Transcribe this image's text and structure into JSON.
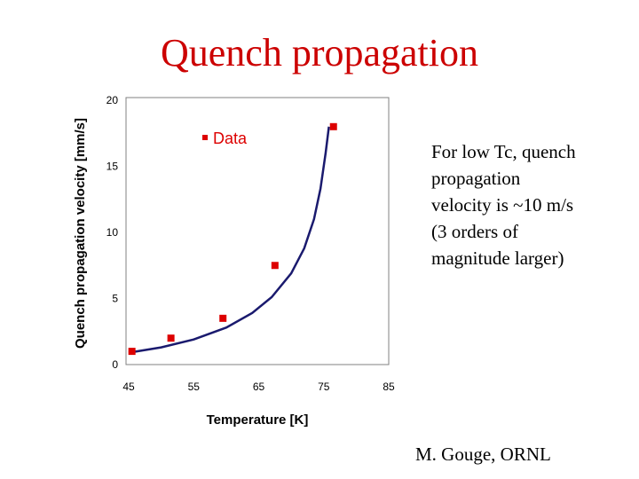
{
  "slide": {
    "title": "Quench propagation",
    "note": "For low Tc, quench propagation velocity is ~10 m/s (3 orders of magnitude larger)",
    "credit": "M. Gouge, ORNL"
  },
  "colors": {
    "title": "#cc0000",
    "marker": "#dd0000",
    "curve": "#1a1a6e",
    "legend_text": "#dd0000"
  },
  "chart_data": {
    "type": "scatter",
    "title": "",
    "xlabel": "Temperature [K]",
    "ylabel": "Quench propagation velocity [mm/s]",
    "xlim": [
      45,
      85
    ],
    "ylim": [
      0,
      20
    ],
    "xticks": [
      "45",
      "55",
      "65",
      "75",
      "85"
    ],
    "yticks": [
      "0",
      "5",
      "10",
      "15",
      "20"
    ],
    "grid": false,
    "legend": {
      "position": "top-center",
      "entries": [
        "Data"
      ]
    },
    "series": [
      {
        "name": "Data",
        "points": [
          {
            "x": 45.5,
            "y": 1.0
          },
          {
            "x": 51.5,
            "y": 2.0
          },
          {
            "x": 59.5,
            "y": 3.5
          },
          {
            "x": 67.5,
            "y": 7.5
          },
          {
            "x": 76.5,
            "y": 18.0
          }
        ]
      }
    ],
    "fit_curve": {
      "points": [
        {
          "x": 45.0,
          "y": 0.9
        },
        {
          "x": 50.0,
          "y": 1.3
        },
        {
          "x": 55.0,
          "y": 1.9
        },
        {
          "x": 60.0,
          "y": 2.8
        },
        {
          "x": 64.0,
          "y": 3.9
        },
        {
          "x": 67.0,
          "y": 5.1
        },
        {
          "x": 70.0,
          "y": 6.9
        },
        {
          "x": 72.0,
          "y": 8.8
        },
        {
          "x": 73.5,
          "y": 11.0
        },
        {
          "x": 74.5,
          "y": 13.3
        },
        {
          "x": 75.3,
          "y": 16.0
        },
        {
          "x": 75.8,
          "y": 18.0
        }
      ]
    }
  }
}
